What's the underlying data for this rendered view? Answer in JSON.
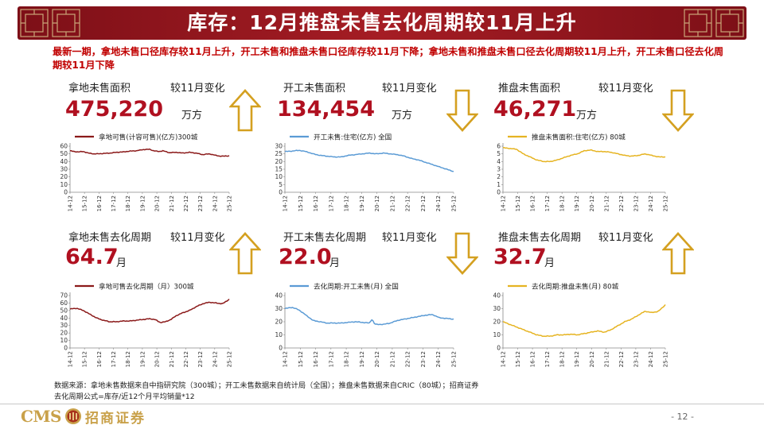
{
  "title": "库存：12月推盘未售去化周期较11月上升",
  "summary": "最新一期，拿地未售口径库存较11月上升，开工未售和推盘未售口径库存较11月下降；拿地未售和推盘未售口径去化周期较11月上升，开工未售口径去化周期较11月下降",
  "change_label": "较11月变化",
  "panels": [
    {
      "label": "拿地未售面积",
      "value": "475,220",
      "unit": "万方",
      "direction": "up"
    },
    {
      "label": "开工未售面积",
      "value": "134,454",
      "unit": "万方",
      "direction": "down"
    },
    {
      "label": "推盘未售面积",
      "value": "46,271",
      "unit": "万方",
      "direction": "down"
    },
    {
      "label": "拿地未售去化周期",
      "value": "64.7",
      "unit": "月",
      "direction": "up"
    },
    {
      "label": "开工未售去化周期",
      "value": "22.0",
      "unit": "月",
      "direction": "down"
    },
    {
      "label": "推盘未售去化周期",
      "value": "32.7",
      "unit": "月",
      "direction": "up"
    }
  ],
  "colors": {
    "title_bg": "#9b1a22",
    "accent_red": "#b01020",
    "arrow_gold": "#d4a020",
    "series_dark_red": "#8b1a1a",
    "series_blue": "#5b9bd5",
    "series_gold": "#e6b422"
  },
  "chart_data": [
    {
      "type": "line",
      "id": "c1",
      "legend": "拿地可售(计容可售)(亿方)300城",
      "color": "#8b1a1a",
      "ylim": [
        0,
        60
      ],
      "yticks": [
        0,
        10,
        20,
        30,
        40,
        50,
        60
      ],
      "xticks": [
        "14-12",
        "15-12",
        "16-12",
        "17-12",
        "18-12",
        "19-12",
        "20-12",
        "21-12",
        "22-12",
        "23-12",
        "24-12",
        "25-12"
      ],
      "anchors": [
        [
          0,
          54
        ],
        [
          0.3,
          53
        ],
        [
          0.6,
          52.5
        ],
        [
          1,
          53
        ],
        [
          1.4,
          51
        ],
        [
          1.8,
          50
        ],
        [
          2,
          50
        ],
        [
          2.5,
          50.5
        ],
        [
          3,
          51
        ],
        [
          3.5,
          52
        ],
        [
          4,
          52.5
        ],
        [
          4.5,
          53.5
        ],
        [
          5,
          54
        ],
        [
          5.5,
          55.5
        ],
        [
          6,
          56
        ],
        [
          6.3,
          54
        ],
        [
          6.7,
          53
        ],
        [
          7,
          54
        ],
        [
          7.5,
          51.5
        ],
        [
          8,
          52
        ],
        [
          8.5,
          51
        ],
        [
          9,
          52
        ],
        [
          9.5,
          51
        ],
        [
          10,
          49
        ],
        [
          10.5,
          50
        ],
        [
          11,
          48
        ],
        [
          11.3,
          47
        ],
        [
          11.6,
          47
        ],
        [
          12,
          47.5
        ]
      ]
    },
    {
      "type": "line",
      "id": "c2",
      "legend": "开工未售:住宅(亿方) 全国",
      "color": "#5b9bd5",
      "ylim": [
        0,
        30
      ],
      "yticks": [
        0,
        5,
        10,
        15,
        20,
        25,
        30
      ],
      "xticks": [
        "14-12",
        "15-12",
        "16-12",
        "17-12",
        "18-12",
        "19-12",
        "20-12",
        "21-12",
        "22-12",
        "23-12",
        "24-12",
        "25-12"
      ],
      "anchors": [
        [
          0,
          26.5
        ],
        [
          0.5,
          26.8
        ],
        [
          1,
          27.3
        ],
        [
          1.5,
          26.5
        ],
        [
          2,
          25
        ],
        [
          2.5,
          24
        ],
        [
          3,
          23.5
        ],
        [
          3.5,
          23
        ],
        [
          4,
          23
        ],
        [
          4.5,
          24
        ],
        [
          5,
          24.5
        ],
        [
          5.5,
          25
        ],
        [
          6,
          25.5
        ],
        [
          6.5,
          25
        ],
        [
          7,
          25.5
        ],
        [
          7.5,
          25
        ],
        [
          8,
          24.5
        ],
        [
          8.5,
          23.5
        ],
        [
          9,
          22
        ],
        [
          9.5,
          21
        ],
        [
          10,
          19.5
        ],
        [
          10.5,
          18
        ],
        [
          11,
          16.5
        ],
        [
          11.5,
          15
        ],
        [
          12,
          13.5
        ]
      ]
    },
    {
      "type": "line",
      "id": "c3",
      "legend": "推盘未售面积:住宅(亿方) 80城",
      "color": "#e6b422",
      "ylim": [
        0,
        6
      ],
      "yticks": [
        0,
        1,
        2,
        3,
        4,
        5,
        6
      ],
      "xticks": [
        "14-12",
        "15-12",
        "16-12",
        "17-12",
        "18-12",
        "19-12",
        "20-12",
        "21-12",
        "22-12",
        "23-12",
        "24-12",
        "25-12"
      ],
      "anchors": [
        [
          0,
          5.8
        ],
        [
          0.5,
          5.7
        ],
        [
          1,
          5.6
        ],
        [
          1.5,
          5
        ],
        [
          2,
          4.6
        ],
        [
          2.5,
          4.2
        ],
        [
          3,
          4
        ],
        [
          3.5,
          4
        ],
        [
          4,
          4.2
        ],
        [
          4.5,
          4.5
        ],
        [
          5,
          4.8
        ],
        [
          5.5,
          5
        ],
        [
          6,
          5.4
        ],
        [
          6.5,
          5.5
        ],
        [
          7,
          5.3
        ],
        [
          7.5,
          5.3
        ],
        [
          8,
          5.2
        ],
        [
          8.5,
          5
        ],
        [
          9,
          4.8
        ],
        [
          9.5,
          4.7
        ],
        [
          10,
          4.8
        ],
        [
          10.5,
          5
        ],
        [
          11,
          4.8
        ],
        [
          11.5,
          4.6
        ],
        [
          12,
          4.6
        ]
      ]
    },
    {
      "type": "line",
      "id": "c4",
      "legend": "拿地可售去化周期（月）300城",
      "color": "#8b1a1a",
      "ylim": [
        0,
        70
      ],
      "yticks": [
        0,
        10,
        20,
        30,
        40,
        50,
        60,
        70
      ],
      "xticks": [
        "14-12",
        "15-12",
        "16-12",
        "17-12",
        "18-12",
        "19-12",
        "20-12",
        "21-12",
        "22-12",
        "23-12",
        "24-12",
        "25-12"
      ],
      "anchors": [
        [
          0,
          52
        ],
        [
          0.5,
          53
        ],
        [
          1,
          50
        ],
        [
          1.5,
          45
        ],
        [
          2,
          40
        ],
        [
          2.5,
          37
        ],
        [
          3,
          35
        ],
        [
          3.5,
          35
        ],
        [
          4,
          36
        ],
        [
          4.5,
          36
        ],
        [
          5,
          37
        ],
        [
          5.5,
          38
        ],
        [
          6,
          39
        ],
        [
          6.4,
          38
        ],
        [
          6.8,
          34
        ],
        [
          7.2,
          35
        ],
        [
          7.6,
          38
        ],
        [
          8,
          43
        ],
        [
          8.5,
          47
        ],
        [
          9,
          50
        ],
        [
          9.5,
          55
        ],
        [
          10,
          59
        ],
        [
          10.5,
          61
        ],
        [
          11,
          60
        ],
        [
          11.5,
          59
        ],
        [
          12,
          65
        ]
      ]
    },
    {
      "type": "line",
      "id": "c5",
      "legend": "去化周期:开工未售(月) 全国",
      "color": "#5b9bd5",
      "ylim": [
        0,
        40
      ],
      "yticks": [
        0,
        10,
        20,
        30,
        40
      ],
      "xticks": [
        "14-12",
        "15-12",
        "16-12",
        "17-12",
        "18-12",
        "19-12",
        "20-12",
        "21-12",
        "22-12",
        "23-12",
        "24-12",
        "25-12"
      ],
      "anchors": [
        [
          0,
          30
        ],
        [
          0.5,
          31
        ],
        [
          1,
          29
        ],
        [
          1.5,
          25
        ],
        [
          2,
          21
        ],
        [
          2.5,
          20
        ],
        [
          3,
          19
        ],
        [
          3.5,
          19
        ],
        [
          4,
          19
        ],
        [
          4.5,
          19.5
        ],
        [
          5,
          20
        ],
        [
          5.5,
          19.5
        ],
        [
          6,
          19
        ],
        [
          6.2,
          22
        ],
        [
          6.4,
          18
        ],
        [
          7,
          18
        ],
        [
          7.5,
          19
        ],
        [
          8,
          21
        ],
        [
          8.5,
          22
        ],
        [
          9,
          23
        ],
        [
          9.5,
          24
        ],
        [
          10,
          25
        ],
        [
          10.5,
          25.5
        ],
        [
          11,
          23
        ],
        [
          11.5,
          22.5
        ],
        [
          12,
          22
        ]
      ]
    },
    {
      "type": "line",
      "id": "c6",
      "legend": "去化周期:推盘未售(月) 80城",
      "color": "#e6b422",
      "ylim": [
        0,
        40
      ],
      "yticks": [
        0,
        10,
        20,
        30,
        40
      ],
      "xticks": [
        "14-12",
        "15-12",
        "16-12",
        "17-12",
        "18-12",
        "19-12",
        "20-12",
        "21-12",
        "22-12",
        "23-12",
        "24-12",
        "25-12"
      ],
      "anchors": [
        [
          0,
          20
        ],
        [
          0.5,
          18
        ],
        [
          1,
          16
        ],
        [
          1.5,
          14
        ],
        [
          2,
          12
        ],
        [
          2.5,
          10
        ],
        [
          3,
          9
        ],
        [
          3.5,
          9
        ],
        [
          4,
          10
        ],
        [
          4.5,
          10
        ],
        [
          5,
          10.5
        ],
        [
          5.5,
          10
        ],
        [
          6,
          11
        ],
        [
          6.5,
          12
        ],
        [
          7,
          13
        ],
        [
          7.5,
          12
        ],
        [
          8,
          14
        ],
        [
          8.5,
          17
        ],
        [
          9,
          20
        ],
        [
          9.5,
          22
        ],
        [
          10,
          25
        ],
        [
          10.5,
          28
        ],
        [
          11,
          27
        ],
        [
          11.5,
          28
        ],
        [
          12,
          33
        ]
      ]
    }
  ],
  "footnote_line1": "数据来源：拿地未售数据来自中指研究院（300城）；开工未售数据来自统计局（全国）；推盘未售数据来自CRIC（80城）；招商证券",
  "footnote_line2": "去化周期公式=库存/近12个月平均销量*12",
  "logo_text": "CMS",
  "logo_cn": "招商证券",
  "page_number": "- 12 -"
}
